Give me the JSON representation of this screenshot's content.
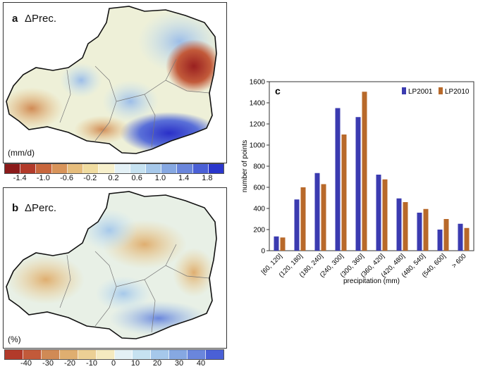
{
  "panel_a": {
    "letter": "a",
    "title": "ΔPrec.",
    "unit": "(mm/d)",
    "colorbar_colors": [
      "#8b1a1a",
      "#b23a2a",
      "#c8663c",
      "#d8945a",
      "#e6bd7c",
      "#f0dca0",
      "#f7f0cc",
      "#e4f1f6",
      "#c6e2f1",
      "#a6c8ea",
      "#86a8e2",
      "#6a86dc",
      "#4a60d6",
      "#2a36cc"
    ],
    "colorbar_ticks": [
      "-1.4",
      "-1.0",
      "-0.6",
      "-0.2",
      "0.2",
      "0.6",
      "1.0",
      "1.4",
      "1.8"
    ]
  },
  "panel_b": {
    "letter": "b",
    "title": "ΔPerc.",
    "unit": "(%)",
    "colorbar_colors": [
      "#b23a2a",
      "#c25a3a",
      "#d08a55",
      "#dfae70",
      "#ecd095",
      "#f5eac0",
      "#e4f1f6",
      "#c6e2f1",
      "#a6c8ea",
      "#86a8e2",
      "#6a86dc",
      "#4a60d6"
    ],
    "colorbar_ticks": [
      "-40",
      "-30",
      "-20",
      "-10",
      "0",
      "10",
      "20",
      "30",
      "40"
    ]
  },
  "colors": {
    "lp2001": "#3b3bb0",
    "lp2010": "#b8692a",
    "map_outline": "#111111",
    "axis": "#333333"
  },
  "chart_data": {
    "type": "bar",
    "panel_letter": "c",
    "categories": [
      "[60, 120]",
      "(120, 180]",
      "(180, 240]",
      "(240, 300]",
      "(300, 360]",
      "(360, 420]",
      "(420, 480]",
      "(480, 540]",
      "(540, 600]",
      "> 600"
    ],
    "series": [
      {
        "name": "LP2001",
        "values": [
          135,
          485,
          735,
          1350,
          1265,
          720,
          495,
          360,
          200,
          255
        ]
      },
      {
        "name": "LP2010",
        "values": [
          125,
          600,
          630,
          1100,
          1505,
          675,
          460,
          395,
          300,
          215
        ]
      }
    ],
    "xlabel": "precipitation (mm)",
    "ylabel": "number of points",
    "ylim": [
      0,
      1600
    ],
    "yticks": [
      "0",
      "200",
      "400",
      "600",
      "800",
      "1000",
      "1200",
      "1400",
      "1600"
    ],
    "grid": false,
    "legend_position": "top-right"
  }
}
